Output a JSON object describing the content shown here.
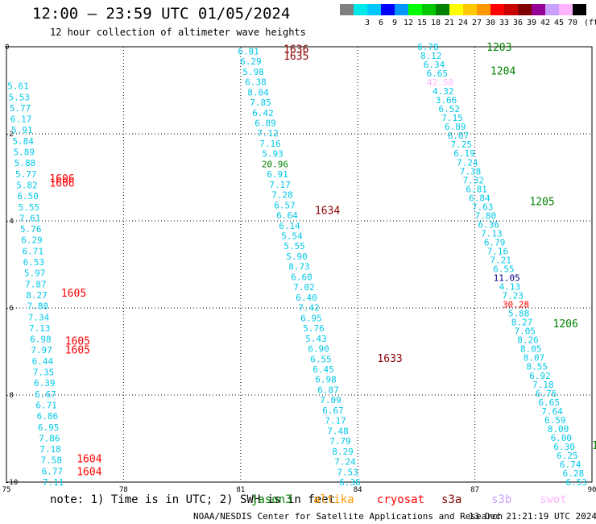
{
  "title": "12:00 — 23:59 UTC 01/05/2024",
  "subtitle": "12 hour collection of altimeter wave heights",
  "scale": {
    "unit": "(ft)",
    "bins": [
      {
        "label": "",
        "color": "#808080"
      },
      {
        "label": "3",
        "color": "#00e8e8"
      },
      {
        "label": "6",
        "color": "#00c8ff"
      },
      {
        "label": "9",
        "color": "#0000ff"
      },
      {
        "label": "12",
        "color": "#0096ff"
      },
      {
        "label": "15",
        "color": "#00ff00"
      },
      {
        "label": "18",
        "color": "#00c800"
      },
      {
        "label": "21",
        "color": "#008200"
      },
      {
        "label": "24",
        "color": "#ffff00"
      },
      {
        "label": "27",
        "color": "#ffc800"
      },
      {
        "label": "30",
        "color": "#ff9600"
      },
      {
        "label": "33",
        "color": "#ff0000"
      },
      {
        "label": "36",
        "color": "#c80000"
      },
      {
        "label": "39",
        "color": "#800000"
      },
      {
        "label": "42",
        "color": "#960096"
      },
      {
        "label": "45",
        "color": "#c8a0ff"
      },
      {
        "label": "70",
        "color": "#ffb4ff"
      },
      {
        "label": "",
        "color": "#000000"
      }
    ]
  },
  "note": "note: 1) Time is in UTC; 2) SWH is in feet",
  "missions": [
    {
      "name": "jason3",
      "color": "#008200"
    },
    {
      "name": "altika",
      "color": "#ff9600"
    },
    {
      "name": "cryosat",
      "color": "#ff0000"
    },
    {
      "name": "s3a",
      "color": "#800000"
    },
    {
      "name": "s3b",
      "color": "#c8a0ff"
    },
    {
      "name": "swot",
      "color": "#ffb4ff"
    }
  ],
  "credit": "NOAA/NESDIS Center for Satellite Applications and Research",
  "timestamp": "13 Dec 21:21:19 UTC 2024",
  "chart_data": {
    "type": "scatter",
    "xlim": [
      75,
      90
    ],
    "ylim": [
      -10,
      0
    ],
    "xticks": [
      75,
      78,
      81,
      84,
      87,
      90
    ],
    "yticks": [
      0,
      -2,
      -4,
      -6,
      -8,
      -10
    ],
    "grid": true,
    "colors": {
      "cyan": "#00c8e8",
      "blue": "#0060e0",
      "lightblue": "#00a8ff",
      "green": "#008200",
      "red": "#ff0000",
      "darkred": "#8c0000",
      "navy": "#000080",
      "pink": "#ffb4ff"
    },
    "tracks": [
      {
        "x0": 75.3,
        "x1": 76.2,
        "y0": -0.9,
        "y1": -10,
        "color": "cyan",
        "values": [
          "5.61",
          "5.53",
          "5.77",
          "6.17",
          "5.91",
          "5.84",
          "5.89",
          "5.88",
          "5.77",
          "5.82",
          "6.50",
          "5.55",
          "7.61",
          "5.76",
          "6.29",
          "6.71",
          "6.53",
          "5.97",
          "7.87",
          "8.27",
          "7.80",
          "7.34",
          "7.13",
          "6.98",
          "7.97",
          "6.44",
          "7.35",
          "6.39",
          "6.67",
          "6.71",
          "6.86",
          "6.95",
          "7.86",
          "7.18",
          "7.58",
          "6.77",
          "7.11"
        ]
      },
      {
        "x0": 81.2,
        "x1": 83.8,
        "y0": -0.1,
        "y1": -10,
        "color": "cyan",
        "values": [
          "6.81",
          "6.29",
          "5.98",
          "6.38",
          "8.04",
          "7.85",
          "6.42",
          "6.89",
          "7.12",
          "7.16",
          "5.93",
          "20.96",
          "6.91",
          "7.17",
          "7.28",
          "6.57",
          "6.64",
          "6.14",
          "5.54",
          "5.55",
          "5.90",
          "8.73",
          "6.60",
          "7.02",
          "6.40",
          "7.42",
          "6.95",
          "5.76",
          "5.43",
          "6.90",
          "6.55",
          "6.45",
          "6.98",
          "6.87",
          "7.09",
          "6.67",
          "7.17",
          "7.48",
          "7.79",
          "8.29",
          "7.24",
          "7.53",
          "6.36"
        ],
        "special": {
          "20.96": "green"
        }
      },
      {
        "x0": 85.8,
        "x1": 89.6,
        "y0": 0,
        "y1": -10,
        "color": "cyan",
        "values": [
          "6.78",
          "8.12",
          "6.34",
          "6.65",
          "42.58",
          "4.32",
          "3.66",
          "6.52",
          "7.15",
          "6.89",
          "6.07",
          "7.25",
          "6.19",
          "7.24",
          "7.38",
          "7.32",
          "6.81",
          "6.84",
          "7.63",
          "7.80",
          "6.36",
          "7.13",
          "6.79",
          "7.16",
          "7.21",
          "6.55",
          "11.05",
          "4.13",
          "7.23",
          "30.28",
          "5.88",
          "8.27",
          "7.05",
          "8.26",
          "8.05",
          "8.07",
          "8.55",
          "6.92",
          "7.18",
          "6.76",
          "6.65",
          "7.64",
          "6.59",
          "8.00",
          "6.00",
          "6.30",
          "6.25",
          "6.74",
          "6.28",
          "6.53"
        ],
        "special": {
          "42.58": "pink",
          "11.05": "navy",
          "30.28": "red"
        }
      }
    ],
    "annotations": [
      {
        "text": "1636",
        "x": 82.1,
        "y": -0.05,
        "color": "darkred"
      },
      {
        "text": "1635",
        "x": 82.1,
        "y": -0.2,
        "color": "darkred"
      },
      {
        "text": "1634",
        "x": 82.9,
        "y": -3.75,
        "color": "darkred"
      },
      {
        "text": "1633",
        "x": 84.5,
        "y": -7.15,
        "color": "darkred"
      },
      {
        "text": "1606",
        "x": 76.1,
        "y": -3.02,
        "color": "red"
      },
      {
        "text": "1606",
        "x": 76.1,
        "y": -3.12,
        "color": "red"
      },
      {
        "text": "1605",
        "x": 76.4,
        "y": -5.65,
        "color": "red"
      },
      {
        "text": "1605",
        "x": 76.5,
        "y": -6.75,
        "color": "red"
      },
      {
        "text": "1605",
        "x": 76.5,
        "y": -6.95,
        "color": "red"
      },
      {
        "text": "1604",
        "x": 76.8,
        "y": -9.45,
        "color": "red"
      },
      {
        "text": "1604",
        "x": 76.8,
        "y": -9.75,
        "color": "red"
      },
      {
        "text": "1203",
        "x": 87.3,
        "y": 0.0,
        "color": "green"
      },
      {
        "text": "1204",
        "x": 87.4,
        "y": -0.55,
        "color": "green"
      },
      {
        "text": "1205",
        "x": 88.4,
        "y": -3.55,
        "color": "green"
      },
      {
        "text": "1206",
        "x": 89.0,
        "y": -6.35,
        "color": "green"
      },
      {
        "text": "1",
        "x": 90.0,
        "y": -9.15,
        "color": "green"
      }
    ]
  }
}
